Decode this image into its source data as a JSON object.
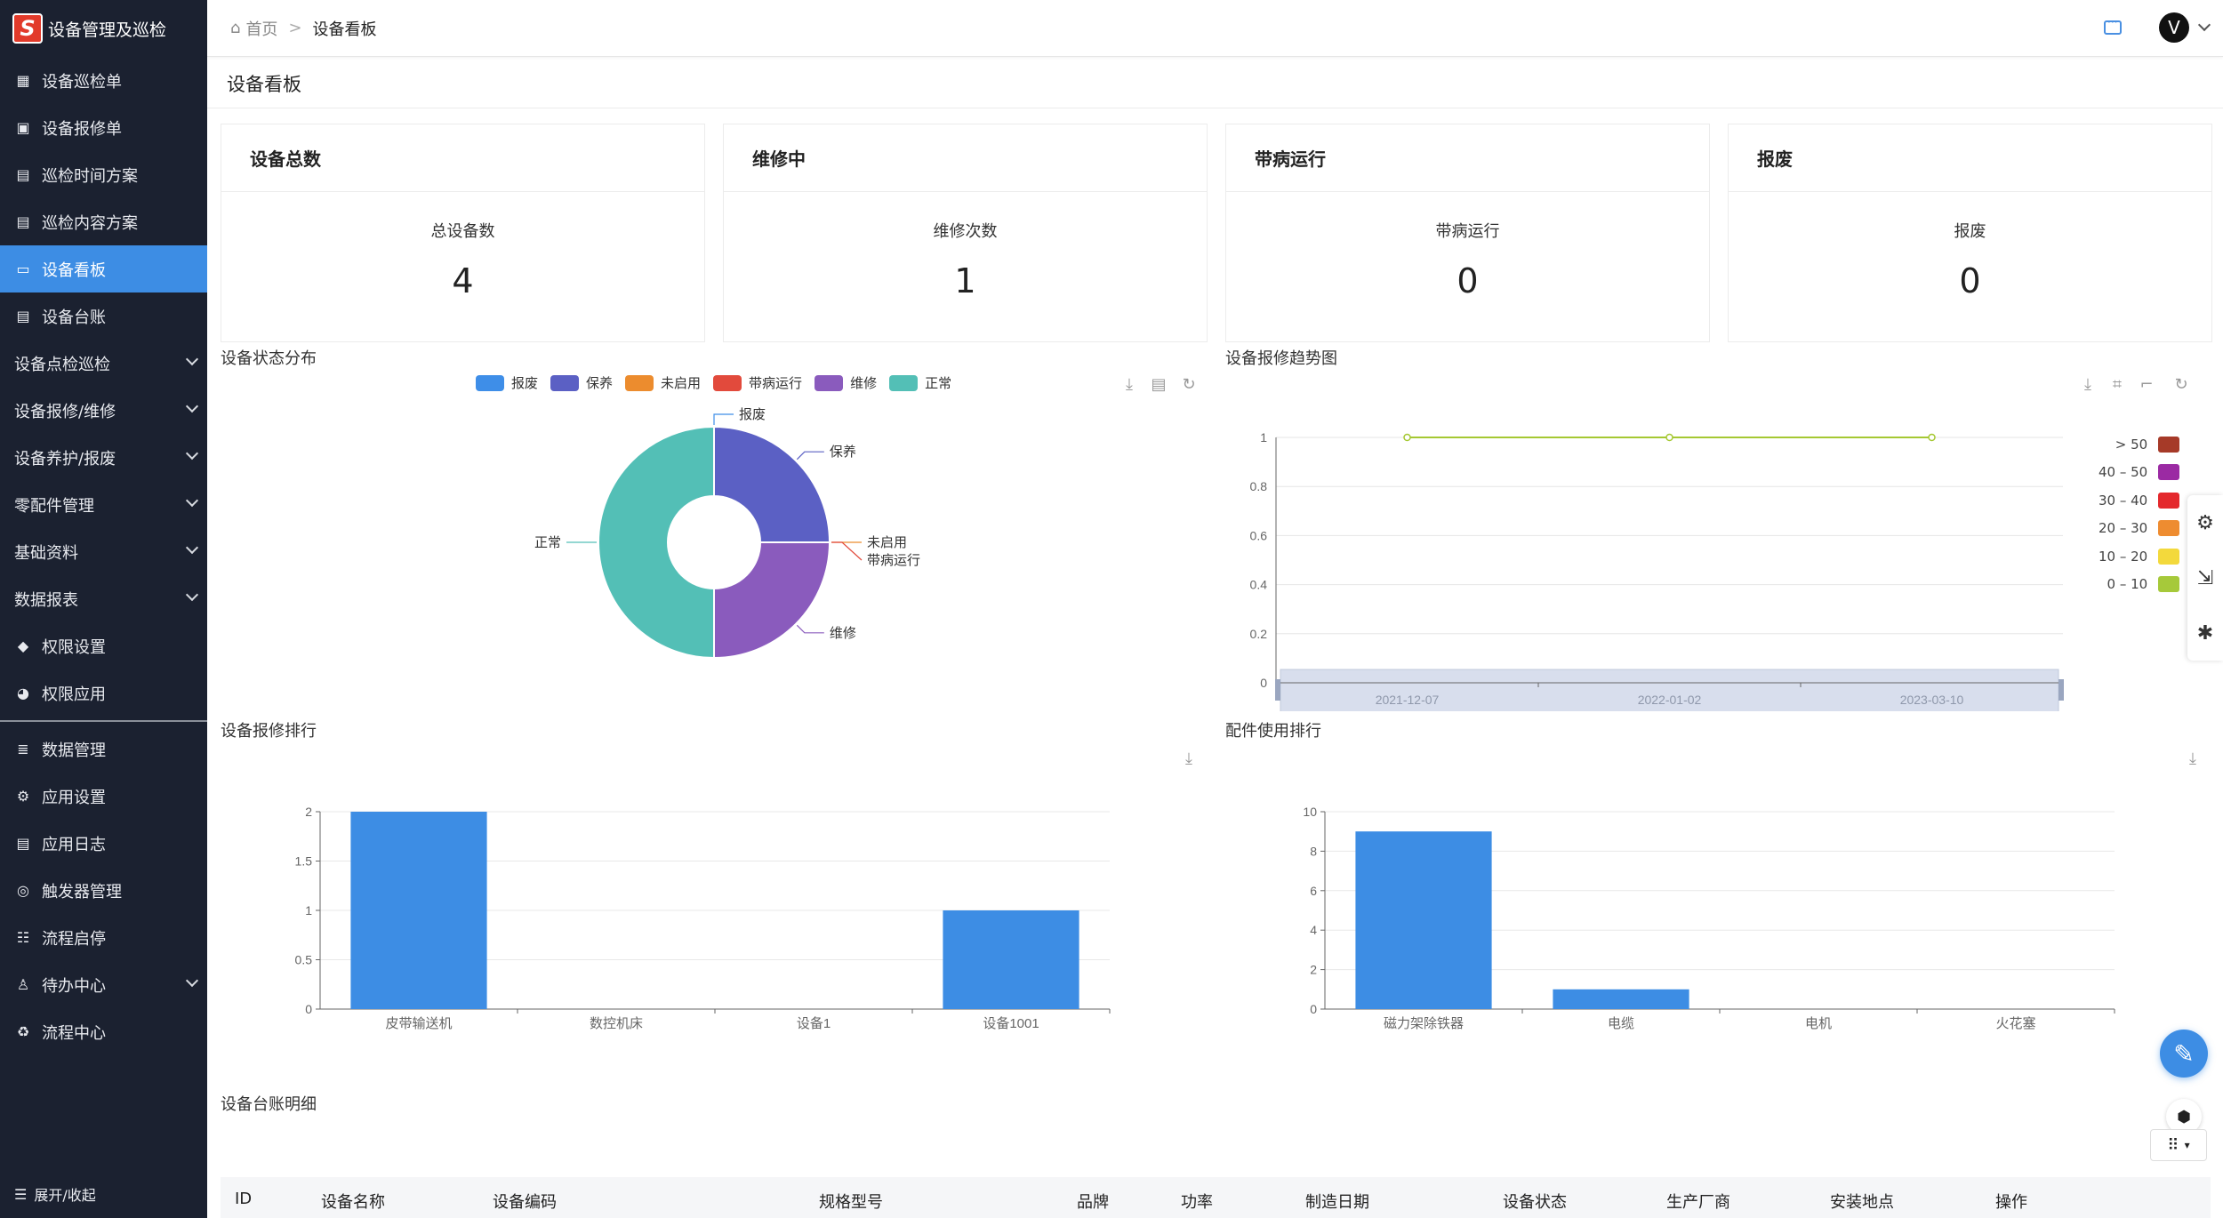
{
  "app": {
    "title": "设备管理及巡检",
    "logo_letter": "S"
  },
  "sidebar": {
    "items": [
      {
        "label": "设备巡检单",
        "icon": "calendar-icon"
      },
      {
        "label": "设备报修单",
        "icon": "calendar-check-icon"
      },
      {
        "label": "巡检时间方案",
        "icon": "file-icon"
      },
      {
        "label": "巡检内容方案",
        "icon": "file-icon"
      },
      {
        "label": "设备看板",
        "icon": "monitor-icon",
        "active": true
      },
      {
        "label": "设备台账",
        "icon": "file-icon"
      }
    ],
    "groups": [
      {
        "label": "设备点检巡检"
      },
      {
        "label": "设备报修/维修"
      },
      {
        "label": "设备养护/报废"
      },
      {
        "label": "零配件管理"
      },
      {
        "label": "基础资料"
      },
      {
        "label": "数据报表"
      }
    ],
    "items2": [
      {
        "label": "权限设置",
        "icon": "diamond-icon"
      },
      {
        "label": "权限应用",
        "icon": "palette-icon"
      }
    ],
    "items3": [
      {
        "label": "数据管理",
        "icon": "database-icon"
      },
      {
        "label": "应用设置",
        "icon": "gear-icon"
      },
      {
        "label": "应用日志",
        "icon": "file-icon"
      },
      {
        "label": "触发器管理",
        "icon": "trigger-icon"
      },
      {
        "label": "流程启停",
        "icon": "flow-icon"
      },
      {
        "label": "待办中心",
        "icon": "user-icon",
        "group": true
      },
      {
        "label": "流程中心",
        "icon": "recycle-icon"
      }
    ],
    "footer": "展开/收起"
  },
  "breadcrumb": {
    "home": "首页",
    "sep": ">",
    "current": "设备看板"
  },
  "user": {
    "avatar_letter": "V"
  },
  "page": {
    "title": "设备看板"
  },
  "cards": [
    {
      "title": "设备总数",
      "label": "总设备数",
      "value": "4"
    },
    {
      "title": "维修中",
      "label": "维修次数",
      "value": "1"
    },
    {
      "title": "带病运行",
      "label": "带病运行",
      "value": "0"
    },
    {
      "title": "报废",
      "label": "报废",
      "value": "0"
    }
  ],
  "sections": {
    "status": "设备状态分布",
    "trend": "设备报修趋势图",
    "repair_rank": "设备报修排行",
    "parts_rank": "配件使用排行",
    "ledger": "设备台账明细"
  },
  "colors": {
    "报废": "#3e8ee8",
    "保养": "#5b60c4",
    "未启用": "#ec8c2e",
    "带病运行": "#e24a3c",
    "维修": "#8a5bbd",
    "正常": "#53bfb6",
    "bar": "#3d8de4",
    "line": "#a5c832"
  },
  "chart_data": [
    {
      "type": "pie",
      "title": "设备状态分布",
      "labels": [
        "报废",
        "保养",
        "未启用",
        "带病运行",
        "维修",
        "正常"
      ],
      "values": [
        0,
        1,
        0,
        0,
        1,
        2
      ],
      "donut": true,
      "legend": "top-center"
    },
    {
      "type": "line",
      "title": "设备报修趋势图",
      "x": [
        "2021-12-07",
        "2022-01-02",
        "2023-03-10"
      ],
      "series": [
        {
          "values": [
            1,
            1,
            1
          ]
        }
      ],
      "ylim": [
        0,
        1
      ],
      "yticks": [
        "0",
        "0.2",
        "0.4",
        "0.6",
        "0.8",
        "1"
      ],
      "visual_map": [
        "> 50",
        "40 – 50",
        "30 – 40",
        "20 – 30",
        "10 – 20",
        "0 – 10"
      ],
      "visual_map_colors": [
        "#a63a28",
        "#9b2aa3",
        "#e4282c",
        "#ee8c30",
        "#f3d93c",
        "#a6c93a"
      ],
      "legend": "right"
    },
    {
      "type": "bar",
      "title": "设备报修排行",
      "categories": [
        "皮带输送机",
        "数控机床",
        "设备1",
        "设备1001"
      ],
      "values": [
        2,
        0,
        0,
        1
      ],
      "ylim": [
        0,
        2
      ],
      "yticks": [
        "0",
        "0.5",
        "1",
        "1.5",
        "2"
      ]
    },
    {
      "type": "bar",
      "title": "配件使用排行",
      "categories": [
        "磁力架除铁器",
        "电缆",
        "电机",
        "火花塞"
      ],
      "values": [
        9,
        1,
        0,
        0
      ],
      "ylim": [
        0,
        10
      ],
      "yticks": [
        "0",
        "2",
        "4",
        "6",
        "8",
        "10"
      ]
    }
  ],
  "table": {
    "columns": [
      "ID",
      "设备名称",
      "设备编码",
      "规格型号",
      "品牌",
      "功率",
      "制造日期",
      "设备状态",
      "生产厂商",
      "安装地点",
      "操作"
    ]
  }
}
